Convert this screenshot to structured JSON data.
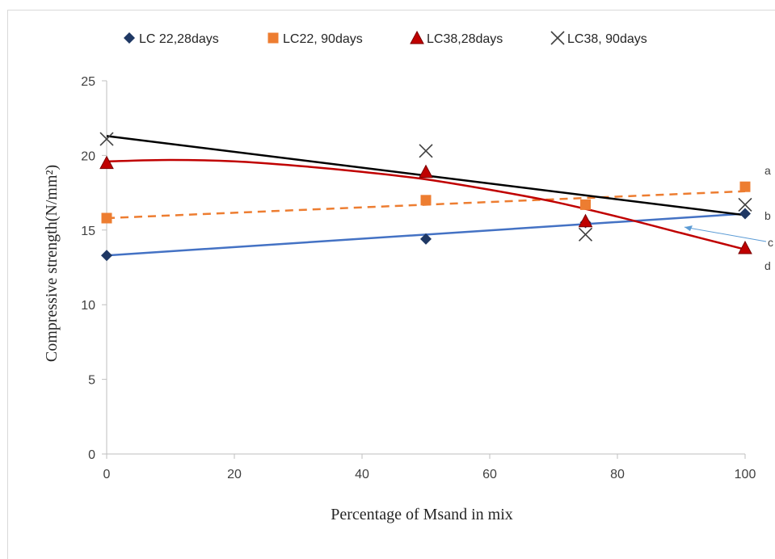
{
  "chart_data": {
    "type": "scatter",
    "title": "",
    "xlabel": "Percentage of Msand in mix",
    "ylabel": "Compressive strength(N/mm²)",
    "xlim": [
      0,
      100
    ],
    "ylim": [
      0,
      25
    ],
    "x_ticks": [
      0,
      20,
      40,
      60,
      80,
      100
    ],
    "y_ticks": [
      0,
      5,
      10,
      15,
      20,
      25
    ],
    "grid": false,
    "legend_position": "top",
    "series": [
      {
        "name": "LC 22,28days",
        "marker": "diamond",
        "color": "#1f3864",
        "line_color": "#4472c4",
        "line_style": "solid",
        "x": [
          0,
          50,
          75,
          100
        ],
        "y": [
          13.3,
          14.4,
          15.5,
          16.1
        ],
        "trendline": {
          "x": [
            0,
            100
          ],
          "y": [
            13.3,
            16.1
          ]
        }
      },
      {
        "name": "LC22, 90days",
        "marker": "square",
        "color": "#ed7d31",
        "line_color": "#ed7d31",
        "line_style": "dashed",
        "x": [
          0,
          50,
          75,
          100
        ],
        "y": [
          15.8,
          17.0,
          16.7,
          17.9
        ],
        "trendline": {
          "x": [
            0,
            100
          ],
          "y": [
            15.8,
            17.6
          ]
        }
      },
      {
        "name": "LC38,28days",
        "marker": "triangle",
        "color": "#c00000",
        "line_color": "#c00000",
        "line_style": "solid",
        "x": [
          0,
          50,
          75,
          100
        ],
        "y": [
          19.5,
          18.9,
          15.6,
          13.8
        ],
        "trendline": {
          "x": [
            0,
            10,
            20,
            30,
            40,
            50,
            60,
            70,
            80,
            90,
            100
          ],
          "y": [
            19.6,
            19.7,
            19.6,
            19.3,
            18.9,
            18.4,
            17.7,
            16.9,
            15.9,
            14.8,
            13.7
          ]
        }
      },
      {
        "name": "LC38, 90days",
        "marker": "x",
        "color": "#404040",
        "line_color": "#000000",
        "line_style": "solid",
        "x": [
          0,
          50,
          75,
          100
        ],
        "y": [
          21.1,
          20.3,
          14.7,
          16.7
        ],
        "trendline": {
          "x": [
            0,
            100
          ],
          "y": [
            21.3,
            16.0
          ]
        }
      }
    ],
    "annotations": [
      {
        "text": "a",
        "series": "LC22, 90days"
      },
      {
        "text": "b",
        "series": "LC38, 90days"
      },
      {
        "text": "c",
        "series": "LC 22,28days",
        "arrow": true
      },
      {
        "text": "d",
        "series": "LC38,28days"
      }
    ]
  }
}
